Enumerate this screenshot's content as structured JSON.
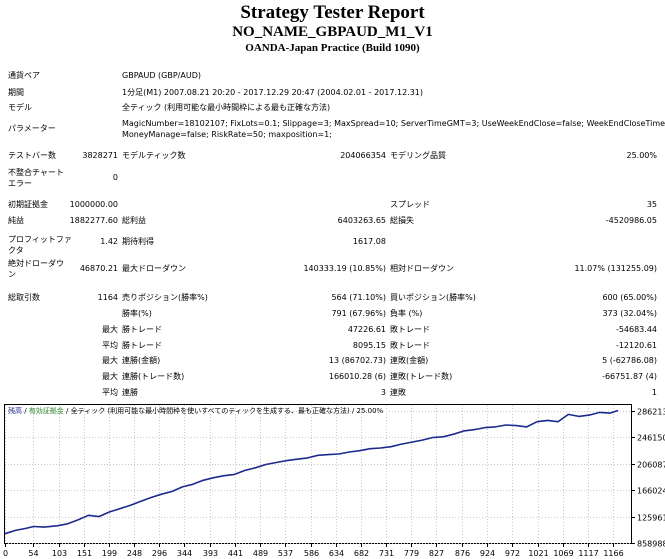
{
  "header": {
    "title": "Strategy Tester Report",
    "subtitle": "NO_NAME_GBPAUD_M1_V1",
    "server": "OANDA-Japan Practice (Build 1090)"
  },
  "info": {
    "symbol_label": "通貨ペア",
    "symbol_value": "GBPAUD (GBP/AUD)",
    "period_label": "期間",
    "period_value": "1分足(M1) 2007.08.21 20:20 - 2017.12.29 20:47 (2004.02.01 - 2017.12.31)",
    "model_label": "モデル",
    "model_value": "全ティック (利用可能な最小時間枠による最も正確な方法)",
    "params_label": "パラメーター",
    "params_line1": "MagicNumber=18102107; FixLots=0.1; Slippage=3; MaxSpread=10; ServerTimeGMT=3; UseWeekEndClose=false; WeekEndCloseTime=-1;",
    "params_line2": "MoneyManage=false; RiskRate=50; maxposition=1;"
  },
  "stats": {
    "bars_label": "テストバー数",
    "bars_value": "3828271",
    "ticks_label": "モデルティック数",
    "ticks_value": "204066354",
    "quality_label": "モデリング品質",
    "quality_value": "25.00%",
    "mismatch_label1": "不整合チャート",
    "mismatch_label2": "エラー",
    "mismatch_value": "0",
    "deposit_label": "初期証拠金",
    "deposit_value": "1000000.00",
    "spread_label": "スプレッド",
    "spread_value": "35",
    "netprofit_label": "純益",
    "netprofit_value": "1882277.60",
    "grossprofit_label": "総利益",
    "grossprofit_value": "6403263.65",
    "grossloss_label": "総損失",
    "grossloss_value": "-4520986.05",
    "pf_label1": "プロフィットファ",
    "pf_label2": "クタ",
    "pf_value": "1.42",
    "expected_label": "期待利得",
    "expected_value": "1617.08",
    "absdd_label1": "絶対ドローダウ",
    "absdd_label2": "ン",
    "absdd_value": "46870.21",
    "maxdd_label": "最大ドローダウン",
    "maxdd_value": "140333.19 (10.85%)",
    "reldd_label": "相対ドローダウン",
    "reldd_value": "11.07% (131255.09)",
    "trades_label": "総取引数",
    "trades_value": "1164",
    "short_label": "売りポジション(勝率%)",
    "short_value": "564 (71.10%)",
    "long_label": "買いポジション(勝率%)",
    "long_value": "600 (65.00%)",
    "winpct_label": "勝率(%)",
    "winpct_value": "791 (67.96%)",
    "losspct_label": "負率 (%)",
    "losspct_value": "373 (32.04%)",
    "max_label": "最大",
    "avg_label": "平均",
    "largest_win_label": "勝トレード",
    "largest_win_value": "47226.61",
    "largest_loss_label": "敗トレード",
    "largest_loss_value": "-54683.44",
    "avg_win_label": "勝トレード",
    "avg_win_value": "8095.15",
    "avg_loss_label": "敗トレード",
    "avg_loss_value": "-12120.61",
    "consec_wins_money_label": "連勝(金額)",
    "consec_wins_money_value": "13 (86702.73)",
    "consec_loss_money_label": "連敗(金額)",
    "consec_loss_money_value": "5 (-62786.08)",
    "consec_profit_label": "連勝(トレード数)",
    "consec_profit_value": "166010.28 (6)",
    "consec_lossamt_label": "連敗(トレード数)",
    "consec_lossamt_value": "-66751.87 (4)",
    "avg_consec_wins_label": "連勝",
    "avg_consec_wins_value": "3",
    "avg_consec_loss_label": "連敗",
    "avg_consec_loss_value": "1"
  },
  "chart_data": {
    "type": "line",
    "legend": "残高 / 有効証拠金 / 全ティック (利用可能な最小時間枠を使いすべてのティックを生成する、最も正確な方法) / 25.00%",
    "legend_parts": [
      "残高",
      "有効証拠金",
      "全ティック (利用可能な最小時間枠を使いすべてのティックを生成する、最も正確な方法)",
      "25.00%"
    ],
    "xlim": [
      0,
      1200
    ],
    "ylim": [
      858988,
      2953000
    ],
    "x_ticks": [
      0,
      54,
      103,
      151,
      199,
      248,
      296,
      344,
      393,
      441,
      489,
      537,
      586,
      634,
      682,
      731,
      779,
      827,
      876,
      924,
      972,
      1021,
      1069,
      1117,
      1166
    ],
    "y_ticks": [
      "2862138",
      "2461508",
      "2060878",
      "1660248",
      "1259618",
      "858988"
    ],
    "y_tick_values": [
      2862138,
      2461508,
      2060878,
      1660248,
      1259618,
      858988
    ],
    "series": [
      {
        "name": "残高",
        "color": "#1c2a8c",
        "x": [
          0,
          20,
          40,
          55,
          75,
          100,
          120,
          140,
          160,
          180,
          200,
          220,
          240,
          260,
          280,
          300,
          320,
          340,
          360,
          380,
          400,
          420,
          440,
          460,
          480,
          500,
          520,
          540,
          560,
          580,
          600,
          620,
          640,
          660,
          680,
          700,
          720,
          740,
          760,
          780,
          800,
          820,
          840,
          860,
          880,
          900,
          920,
          940,
          960,
          980,
          1000,
          1020,
          1040,
          1060,
          1080,
          1100,
          1120,
          1140,
          1160,
          1175
        ],
        "y": [
          1000000,
          1050000,
          1080000,
          1110000,
          1100000,
          1120000,
          1150000,
          1210000,
          1280000,
          1260000,
          1330000,
          1380000,
          1430000,
          1490000,
          1550000,
          1600000,
          1640000,
          1710000,
          1750000,
          1810000,
          1850000,
          1880000,
          1900000,
          1960000,
          2000000,
          2050000,
          2080000,
          2110000,
          2130000,
          2150000,
          2190000,
          2200000,
          2210000,
          2240000,
          2260000,
          2290000,
          2300000,
          2320000,
          2360000,
          2390000,
          2420000,
          2460000,
          2470000,
          2510000,
          2560000,
          2580000,
          2610000,
          2620000,
          2650000,
          2640000,
          2620000,
          2700000,
          2720000,
          2700000,
          2810000,
          2780000,
          2800000,
          2840000,
          2830000,
          2870000
        ]
      }
    ]
  }
}
